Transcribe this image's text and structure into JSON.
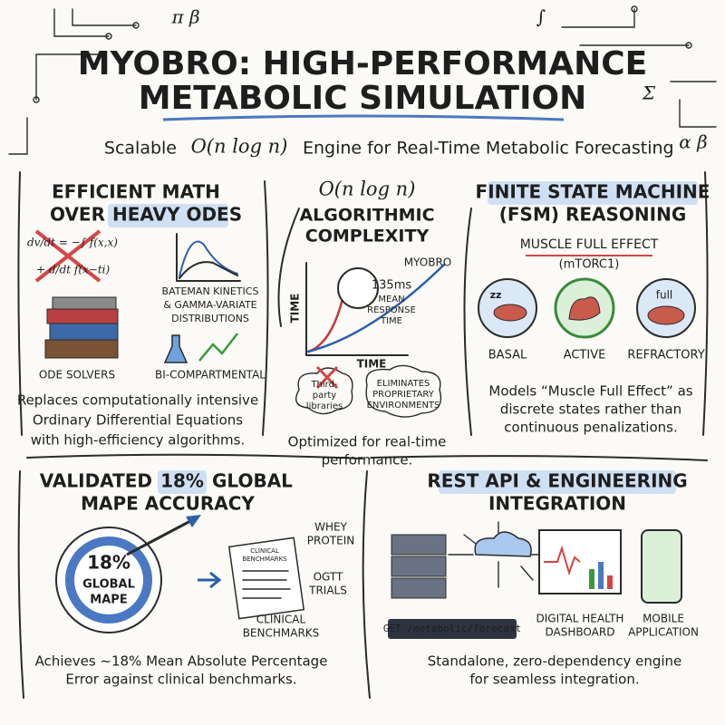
{
  "header": {
    "title": [
      "MYOBRO: HIGH-PERFORMANCE",
      "METABOLIC SIMULATION"
    ],
    "subtitle": {
      "before": "Scalable",
      "math": "O(n log n)",
      "after": "Engine for Real-Time Metabolic Forecasting"
    },
    "symbols": [
      "π β",
      "∫",
      "Σ",
      "α β"
    ]
  },
  "panels": {
    "math": {
      "title": [
        "EFFICIENT MATH",
        "OVER",
        "HEAVY ODES"
      ],
      "equation": [
        "dv/dt = −∫ f(x,x)",
        "+ d/dt f(x−ti)"
      ],
      "kinetics": [
        "BATEMAN KINETICS",
        "& GAMMA-VARIATE",
        "DISTRIBUTIONS"
      ],
      "solvers": "ODE SOLVERS",
      "compartmental": "BI-COMPARTMENTAL",
      "description": [
        "Replaces computationally intensive",
        "Ordinary Differential Equations",
        "with high-efficiency algorithms."
      ]
    },
    "complexity": {
      "math": "O(n log n)",
      "title": [
        "ALGORITHMIC",
        "COMPLEXITY"
      ],
      "response": [
        "135ms",
        "MEAN",
        "RESPONSE",
        "TIME"
      ],
      "series_label": "MYOBRO",
      "y_axis": "TIME",
      "x_axis": "TIME",
      "third_party": [
        "Third-",
        "party",
        "libraries"
      ],
      "eliminates": [
        "ELIMINATES",
        "PROPRIETARY",
        "ENVIRONMENTS"
      ],
      "description": [
        "Optimized for real-time",
        "performance."
      ]
    },
    "fsm": {
      "title": [
        "FINITE STATE MACHINE",
        "(FSM) REASONING"
      ],
      "effect": "MUSCLE FULL EFFECT",
      "effect_sub": "(mTORC1)",
      "icons": [
        "zz",
        "full"
      ],
      "states": [
        "BASAL",
        "ACTIVE",
        "REFRACTORY"
      ],
      "description": [
        "Models “Muscle Full Effect” as",
        "discrete states rather than",
        "continuous penalizations."
      ]
    },
    "accuracy": {
      "title": [
        "VALIDATED",
        "18%",
        "GLOBAL",
        "MAPE ACCURACY"
      ],
      "target": [
        "18%",
        "GLOBAL",
        "MAPE"
      ],
      "document": [
        "CLINICAL",
        "BENCHMARKS"
      ],
      "whey": [
        "WHEY",
        "PROTEIN"
      ],
      "ogtt": [
        "OGTT",
        "TRIALS"
      ],
      "benchmarks": [
        "CLINICAL",
        "BENCHMARKS"
      ],
      "description": [
        "Achieves ~18% Mean Absolute Percentage",
        "Error against clinical benchmarks."
      ]
    },
    "api": {
      "title": [
        "REST API & ENGINEERING",
        "INTEGRATION"
      ],
      "endpoint": "GET /metabolic/forecast",
      "dashboard": [
        "DIGITAL HEALTH",
        "DASHBOARD"
      ],
      "mobile": [
        "MOBILE",
        "APPLICATION"
      ],
      "description": [
        "Standalone, zero-dependency engine",
        "for seamless integration."
      ]
    }
  }
}
